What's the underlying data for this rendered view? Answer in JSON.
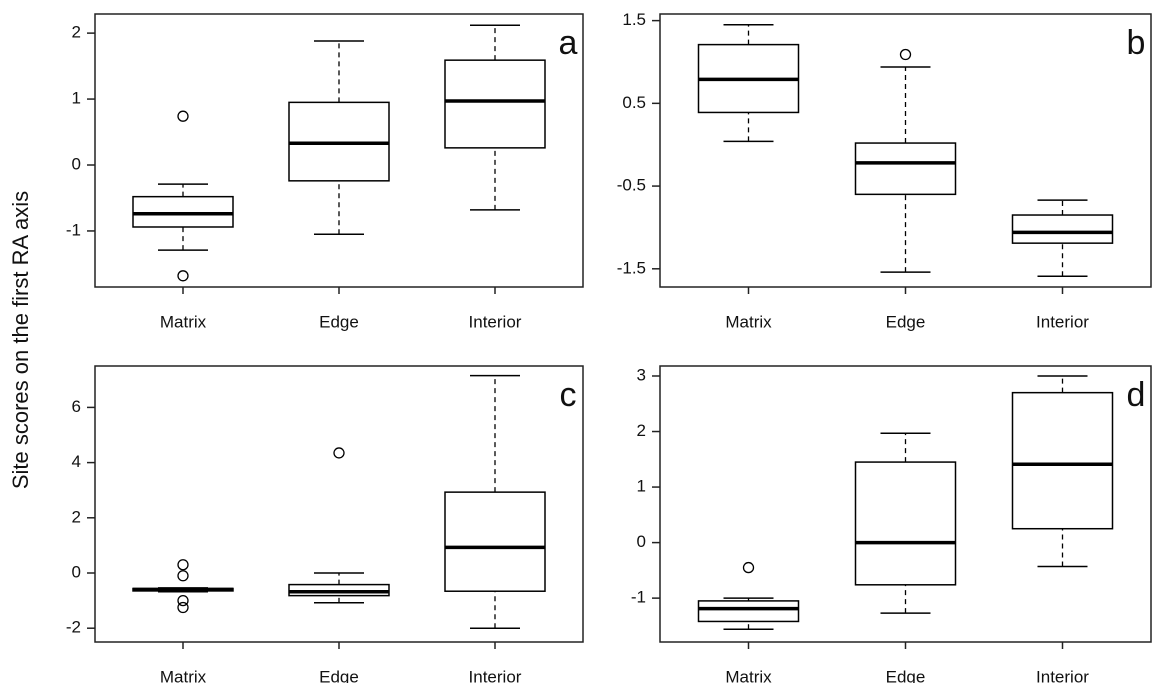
{
  "chart_data": [
    {
      "type": "box",
      "ylabel": "Site scores on the first RA axis",
      "annotation": "a",
      "categories": [
        "Matrix",
        "Edge",
        "Interior"
      ],
      "boxes": [
        {
          "whislo": -1.29,
          "q1": -0.94,
          "med": -0.74,
          "q3": -0.48,
          "whishi": -0.29,
          "fliers": [
            0.74,
            -1.68
          ]
        },
        {
          "whislo": -1.05,
          "q1": -0.24,
          "med": 0.33,
          "q3": 0.95,
          "whishi": 1.88,
          "fliers": []
        },
        {
          "whislo": -0.68,
          "q1": 0.26,
          "med": 0.97,
          "q3": 1.59,
          "whishi": 2.12,
          "fliers": []
        }
      ],
      "ylim": [
        -1.85,
        2.29
      ],
      "yticks": [
        -1,
        0,
        1,
        2
      ],
      "color": "#000000"
    },
    {
      "type": "box",
      "annotation": "b",
      "categories": [
        "Matrix",
        "Edge",
        "Interior"
      ],
      "boxes": [
        {
          "whislo": 0.04,
          "q1": 0.39,
          "med": 0.79,
          "q3": 1.21,
          "whishi": 1.45,
          "fliers": []
        },
        {
          "whislo": -1.54,
          "q1": -0.6,
          "med": -0.22,
          "q3": 0.02,
          "whishi": 0.94,
          "fliers": [
            1.09
          ]
        },
        {
          "whislo": -1.59,
          "q1": -1.19,
          "med": -1.06,
          "q3": -0.85,
          "whishi": -0.67,
          "fliers": []
        }
      ],
      "ylim": [
        -1.72,
        1.58
      ],
      "yticks": [
        -1.5,
        -0.5,
        0.5,
        1.5
      ],
      "color": "#000000"
    },
    {
      "type": "box",
      "annotation": "c",
      "categories": [
        "Matrix",
        "Edge",
        "Interior"
      ],
      "boxes": [
        {
          "whislo": -0.68,
          "q1": -0.65,
          "med": -0.6,
          "q3": -0.56,
          "whishi": -0.54,
          "fliers": [
            0.3,
            -0.1,
            -1.0,
            -1.25
          ]
        },
        {
          "whislo": -1.08,
          "q1": -0.82,
          "med": -0.68,
          "q3": -0.42,
          "whishi": 0.0,
          "fliers": [
            4.35
          ]
        },
        {
          "whislo": -2.0,
          "q1": -0.66,
          "med": 0.93,
          "q3": 2.93,
          "whishi": 7.15,
          "fliers": []
        }
      ],
      "ylim": [
        -2.5,
        7.5
      ],
      "yticks": [
        -2,
        0,
        2,
        4,
        6
      ],
      "color": "#000000"
    },
    {
      "type": "box",
      "annotation": "d",
      "categories": [
        "Matrix",
        "Edge",
        "Interior"
      ],
      "boxes": [
        {
          "whislo": -1.56,
          "q1": -1.42,
          "med": -1.19,
          "q3": -1.05,
          "whishi": -1.0,
          "fliers": [
            -0.45
          ]
        },
        {
          "whislo": -1.27,
          "q1": -0.76,
          "med": 0.0,
          "q3": 1.45,
          "whishi": 1.97,
          "fliers": []
        },
        {
          "whislo": -0.43,
          "q1": 0.25,
          "med": 1.41,
          "q3": 2.7,
          "whishi": 3.0,
          "fliers": []
        }
      ],
      "ylim": [
        -1.79,
        3.18
      ],
      "yticks": [
        -1,
        0,
        1,
        2,
        3
      ],
      "color": "#000000"
    }
  ]
}
